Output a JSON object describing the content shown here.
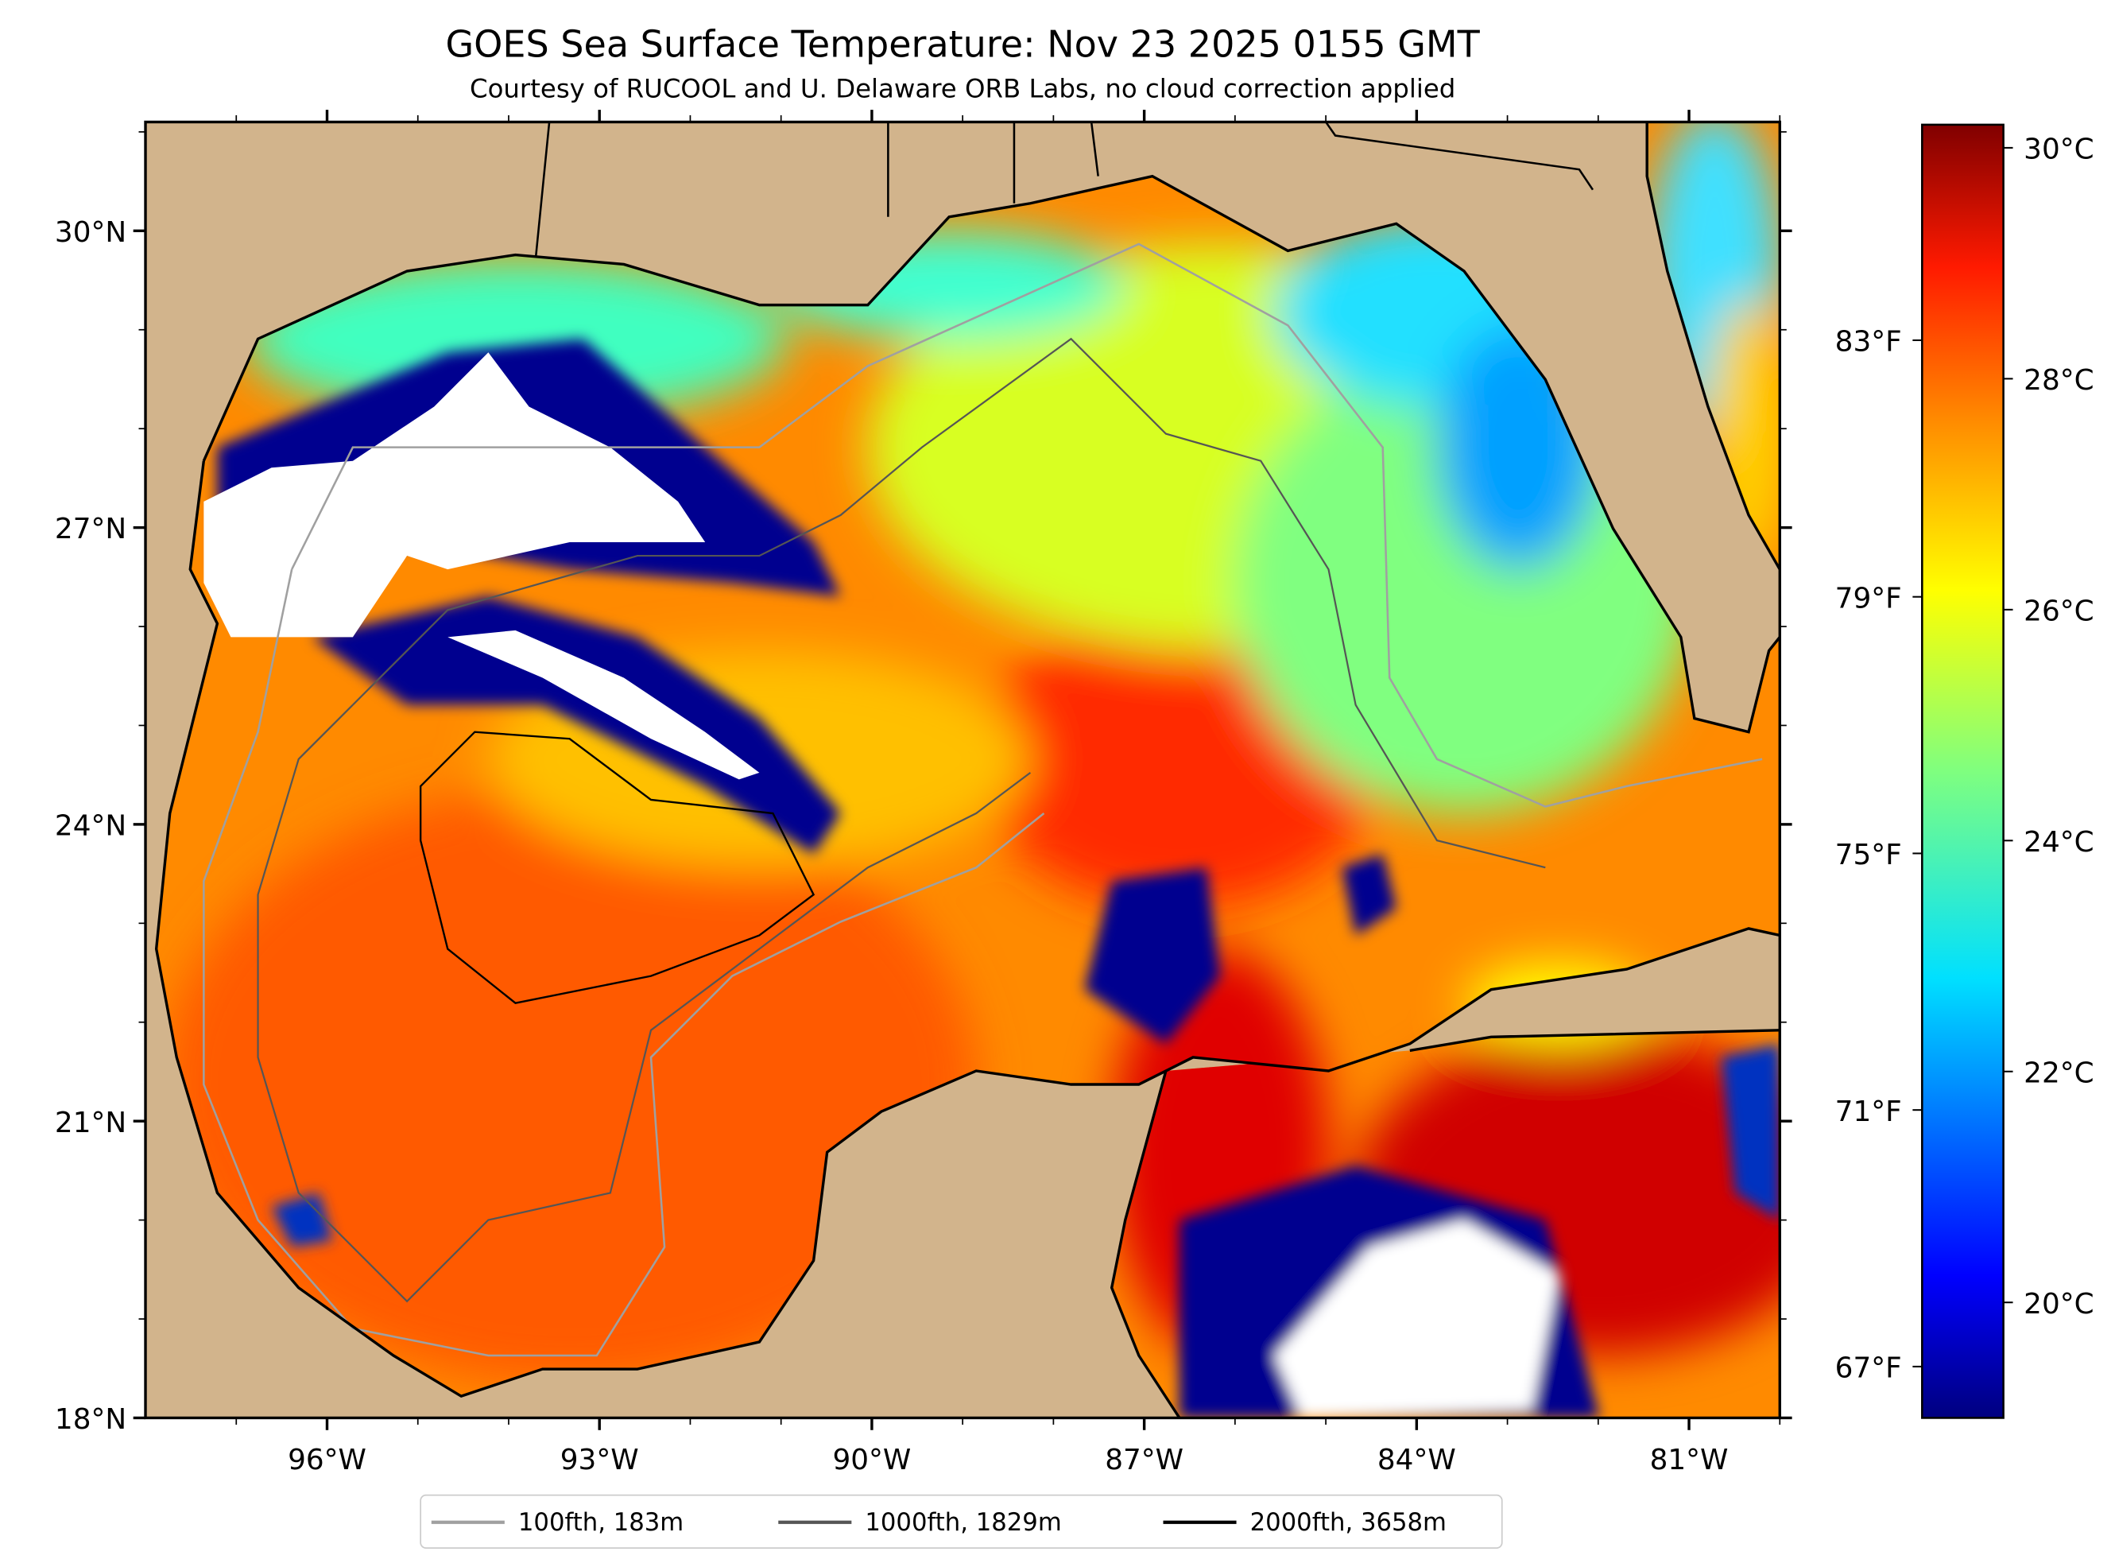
{
  "title": "GOES Sea Surface Temperature: Nov 23 2025 0155 GMT",
  "subtitle": "Courtesy of RUCOOL and U. Delaware ORB Labs, no cloud correction applied",
  "chart_data": {
    "type": "heatmap",
    "title": "GOES Sea Surface Temperature: Nov 23 2025 0155 GMT",
    "subtitle": "Courtesy of RUCOOL and U. Delaware ORB Labs, no cloud correction applied",
    "variable": "Sea Surface Temperature",
    "xlim": [
      -98,
      -80
    ],
    "ylim": [
      18,
      31.1
    ],
    "x_ticks": [
      {
        "value": -96,
        "label": "96°W"
      },
      {
        "value": -93,
        "label": "93°W"
      },
      {
        "value": -90,
        "label": "90°W"
      },
      {
        "value": -87,
        "label": "87°W"
      },
      {
        "value": -84,
        "label": "84°W"
      },
      {
        "value": -81,
        "label": "81°W"
      }
    ],
    "y_ticks": [
      {
        "value": 30,
        "label": "30°N"
      },
      {
        "value": 27,
        "label": "27°N"
      },
      {
        "value": 24,
        "label": "24°N"
      },
      {
        "value": 21,
        "label": "21°N"
      },
      {
        "value": 18,
        "label": "18°N"
      }
    ],
    "colorbar": {
      "colormap": "jet",
      "range_c": [
        19.0,
        30.2
      ],
      "celsius_ticks": [
        {
          "value": 30,
          "label": "30°C"
        },
        {
          "value": 28,
          "label": "28°C"
        },
        {
          "value": 26,
          "label": "26°C"
        },
        {
          "value": 24,
          "label": "24°C"
        },
        {
          "value": 22,
          "label": "22°C"
        },
        {
          "value": 20,
          "label": "20°C"
        }
      ],
      "fahrenheit_ticks": [
        {
          "value": 83,
          "label": "83°F"
        },
        {
          "value": 79,
          "label": "79°F"
        },
        {
          "value": 75,
          "label": "75°F"
        },
        {
          "value": 71,
          "label": "71°F"
        },
        {
          "value": 67,
          "label": "67°F"
        }
      ]
    },
    "legend": {
      "placement": "bottom-center",
      "entries": [
        {
          "label": "100fth, 183m",
          "color": "#a0a0a0"
        },
        {
          "label": "1000fth, 1829m",
          "color": "#555555"
        },
        {
          "label": "2000fth, 3658m",
          "color": "#000000"
        }
      ]
    },
    "colors": {
      "land": "#d2b48c",
      "cloud_mask": "#ffffff",
      "rivers": "#9ab6e0"
    }
  }
}
